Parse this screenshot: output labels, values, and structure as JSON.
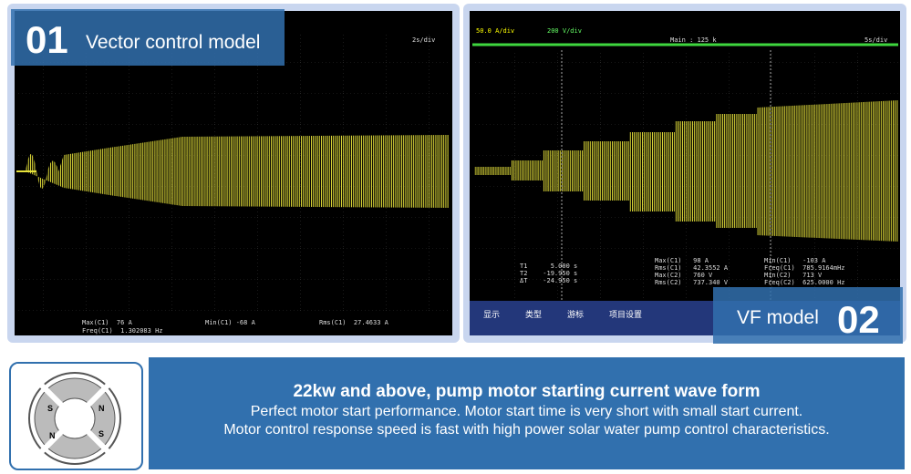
{
  "left_panel": {
    "number": "01",
    "title": "Vector control model",
    "timebase": "2s/div",
    "measurements": [
      "Max(C1)  76 A",
      "Freq(C1)  1.302083 Hz",
      "Min(C1) -68 A",
      "Rms(C1)  27.4633 A"
    ]
  },
  "right_panel": {
    "number": "02",
    "title": "VF model",
    "timebase": "5s/div",
    "zoom": "Main : 125 k",
    "channels": [
      "50.0 A/div",
      "200 V/div"
    ],
    "cursors": [
      "T1      5.000 s",
      "T2    -19.950 s",
      "ΔT    -24.950 s"
    ],
    "measurements": [
      "Max(C1)   98 A",
      "Rms(C1)   42.3552 A",
      "Max(C2)   760 V",
      "Rms(C2)   737.340 V",
      "Min(C1)   -103 A",
      "Freq(C1)  785.9164mHz",
      "Min(C2)   713 V",
      "Freq(C2)  625.0000 Hz"
    ],
    "menu": [
      "显示",
      "类型",
      "游标",
      "项目设置"
    ]
  },
  "motor": {
    "poles": [
      "S",
      "N",
      "S",
      "N"
    ]
  },
  "banner": {
    "heading": "22kw and above, pump motor starting current wave form",
    "lines": [
      "Perfect motor start performance. Motor start time is very short with small start current.",
      "Motor control response speed is fast with high power solar water pump control characteristics."
    ]
  }
}
